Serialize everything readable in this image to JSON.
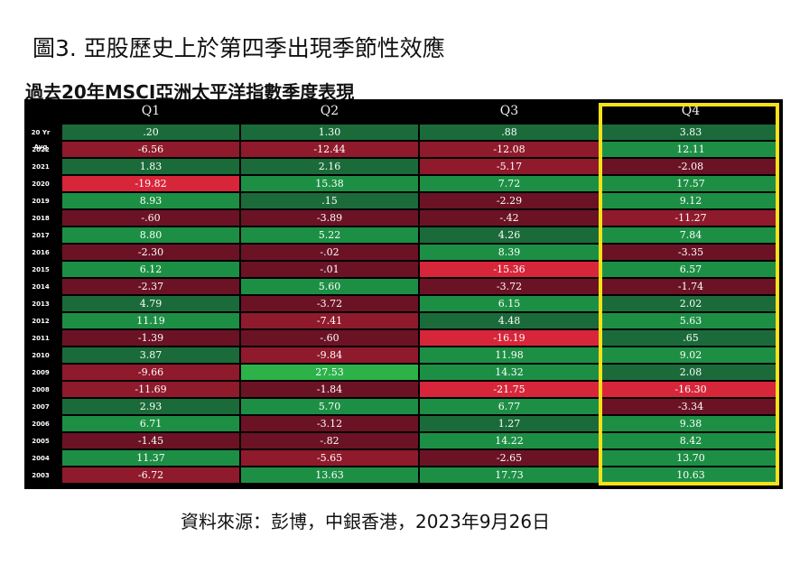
{
  "figure_title": "圖3. 亞股歷史上於第四季出現季節性效應",
  "source": "資料來源：彭博，中銀香港，2023年9月26日",
  "colors": {
    "pos_strong": "#2db24a",
    "pos": "#1d8f45",
    "pos_weak": "#1b6b3a",
    "neg_weak": "#6b1325",
    "neg": "#8f1a2c",
    "neg_strong": "#d7263a",
    "highlight": "#f5e11a"
  },
  "chart_data": {
    "type": "table",
    "title": "過去20年MSCI亞洲太平洋指數季度表現",
    "columns": [
      "Q1",
      "Q2",
      "Q3",
      "Q4"
    ],
    "rows": [
      {
        "label": "20 Yr Avg",
        "values": [
          ".20",
          "1.30",
          ".88",
          "3.83"
        ]
      },
      {
        "label": "2022",
        "values": [
          "-6.56",
          "-12.44",
          "-12.08",
          "12.11"
        ]
      },
      {
        "label": "2021",
        "values": [
          "1.83",
          "2.16",
          "-5.17",
          "-2.08"
        ]
      },
      {
        "label": "2020",
        "values": [
          "-19.82",
          "15.38",
          "7.72",
          "17.57"
        ]
      },
      {
        "label": "2019",
        "values": [
          "8.93",
          ".15",
          "-2.29",
          "9.12"
        ]
      },
      {
        "label": "2018",
        "values": [
          "-.60",
          "-3.89",
          "-.42",
          "-11.27"
        ]
      },
      {
        "label": "2017",
        "values": [
          "8.80",
          "5.22",
          "4.26",
          "7.84"
        ]
      },
      {
        "label": "2016",
        "values": [
          "-2.30",
          "-.02",
          "8.39",
          "-3.35"
        ]
      },
      {
        "label": "2015",
        "values": [
          "6.12",
          "-.01",
          "-15.36",
          "6.57"
        ]
      },
      {
        "label": "2014",
        "values": [
          "-2.37",
          "5.60",
          "-3.72",
          "-1.74"
        ]
      },
      {
        "label": "2013",
        "values": [
          "4.79",
          "-3.72",
          "6.15",
          "2.02"
        ]
      },
      {
        "label": "2012",
        "values": [
          "11.19",
          "-7.41",
          "4.48",
          "5.63"
        ]
      },
      {
        "label": "2011",
        "values": [
          "-1.39",
          "-.60",
          "-16.19",
          ".65"
        ]
      },
      {
        "label": "2010",
        "values": [
          "3.87",
          "-9.84",
          "11.98",
          "9.02"
        ]
      },
      {
        "label": "2009",
        "values": [
          "-9.66",
          "27.53",
          "14.32",
          "2.08"
        ]
      },
      {
        "label": "2008",
        "values": [
          "-11.69",
          "-1.84",
          "-21.75",
          "-16.30"
        ]
      },
      {
        "label": "2007",
        "values": [
          "2.93",
          "5.70",
          "6.77",
          "-3.34"
        ]
      },
      {
        "label": "2006",
        "values": [
          "6.71",
          "-3.12",
          "1.27",
          "9.38"
        ]
      },
      {
        "label": "2005",
        "values": [
          "-1.45",
          "-.82",
          "14.22",
          "8.42"
        ]
      },
      {
        "label": "2004",
        "values": [
          "11.37",
          "-5.65",
          "-2.65",
          "13.70"
        ]
      },
      {
        "label": "2003",
        "values": [
          "-6.72",
          "13.63",
          "17.73",
          "10.63"
        ]
      }
    ],
    "highlighted_column": "Q4"
  }
}
